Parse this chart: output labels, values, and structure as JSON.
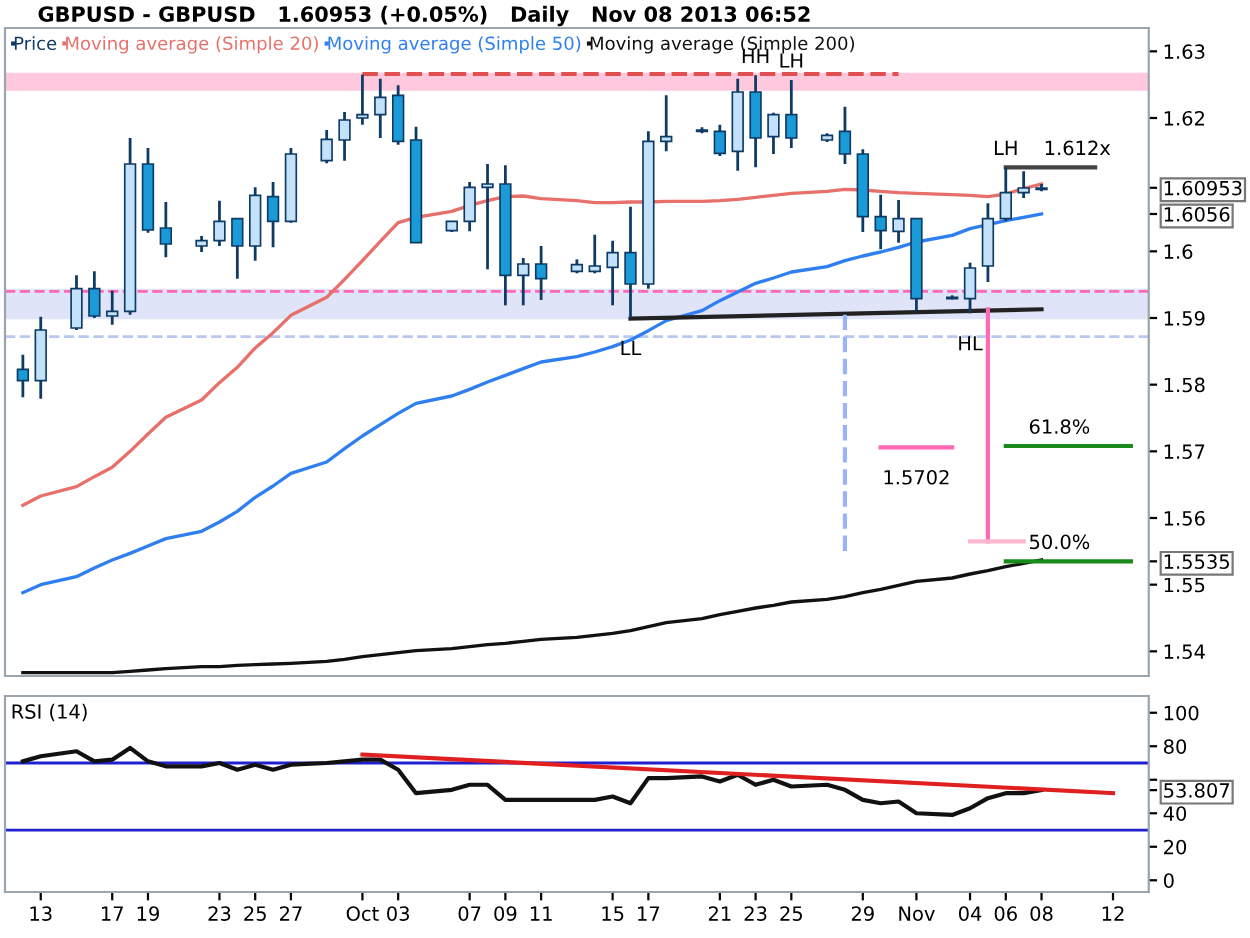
{
  "chart_data": [
    {
      "type": "candlestick",
      "title": "GBPUSD - GBPUSD   1.60953 (+0.05%)   Daily   Nov 08 2013 06:52",
      "x": [
        "2013-09-12",
        "2013-09-13",
        "2013-09-15",
        "2013-09-16",
        "2013-09-17",
        "2013-09-18",
        "2013-09-19",
        "2013-09-20",
        "2013-09-22",
        "2013-09-23",
        "2013-09-24",
        "2013-09-25",
        "2013-09-26",
        "2013-09-27",
        "2013-09-29",
        "2013-09-30",
        "2013-10-01",
        "2013-10-02",
        "2013-10-03",
        "2013-10-04",
        "2013-10-06",
        "2013-10-07",
        "2013-10-08",
        "2013-10-09",
        "2013-10-10",
        "2013-10-11",
        "2013-10-13",
        "2013-10-14",
        "2013-10-15",
        "2013-10-16",
        "2013-10-17",
        "2013-10-18",
        "2013-10-20",
        "2013-10-21",
        "2013-10-22",
        "2013-10-23",
        "2013-10-24",
        "2013-10-25",
        "2013-10-27",
        "2013-10-28",
        "2013-10-29",
        "2013-10-30",
        "2013-10-31",
        "2013-11-01",
        "2013-11-03",
        "2013-11-04",
        "2013-11-05",
        "2013-11-06",
        "2013-11-07",
        "2013-11-08"
      ],
      "series": [
        {
          "name": "Price",
          "color": "#0d3b66",
          "ohlc": [
            [
              1.5823,
              1.5845,
              1.5781,
              1.5806
            ],
            [
              1.5806,
              1.5902,
              1.5779,
              1.5882
            ],
            [
              1.5885,
              1.5964,
              1.5882,
              1.5944
            ],
            [
              1.5944,
              1.597,
              1.59,
              1.5903
            ],
            [
              1.5903,
              1.5941,
              1.589,
              1.591
            ],
            [
              1.591,
              1.617,
              1.5905,
              1.6131
            ],
            [
              1.6131,
              1.6155,
              1.6028,
              1.6032
            ],
            [
              1.6035,
              1.6074,
              1.5991,
              1.6011
            ],
            [
              1.6008,
              1.6023,
              1.5999,
              1.6016
            ],
            [
              1.6016,
              1.6076,
              1.6008,
              1.6045
            ],
            [
              1.6049,
              1.6049,
              1.5959,
              1.6008
            ],
            [
              1.6008,
              1.6096,
              1.5986,
              1.6084
            ],
            [
              1.6082,
              1.6104,
              1.6006,
              1.6045
            ],
            [
              1.6045,
              1.6155,
              1.6043,
              1.6146
            ],
            [
              1.6136,
              1.6182,
              1.6132,
              1.6168
            ],
            [
              1.6167,
              1.6209,
              1.6136,
              1.6197
            ],
            [
              1.62,
              1.6265,
              1.619,
              1.6205
            ],
            [
              1.6205,
              1.6259,
              1.617,
              1.6231
            ],
            [
              1.6234,
              1.6249,
              1.616,
              1.6165
            ],
            [
              1.6167,
              1.6187,
              1.6013,
              1.6013
            ],
            [
              1.6031,
              1.6045,
              1.6029,
              1.6045
            ],
            [
              1.6045,
              1.6104,
              1.603,
              1.6096
            ],
            [
              1.6096,
              1.6131,
              1.5973,
              1.6101
            ],
            [
              1.6101,
              1.6129,
              1.5919,
              1.5964
            ],
            [
              1.5964,
              1.599,
              1.5919,
              1.5981
            ],
            [
              1.5981,
              1.6008,
              1.5927,
              1.5959
            ],
            [
              1.597,
              1.5988,
              1.5967,
              1.598
            ],
            [
              1.597,
              1.6025,
              1.5967,
              1.5978
            ],
            [
              1.5976,
              1.6016,
              1.5919,
              1.5998
            ],
            [
              1.5998,
              1.6067,
              1.59,
              1.5951
            ],
            [
              1.5951,
              1.618,
              1.5944,
              1.6165
            ],
            [
              1.6165,
              1.6234,
              1.615,
              1.6172
            ],
            [
              1.618,
              1.6186,
              1.6177,
              1.6182
            ],
            [
              1.618,
              1.619,
              1.6143,
              1.6147
            ],
            [
              1.615,
              1.6259,
              1.6121,
              1.6239
            ],
            [
              1.6239,
              1.6264,
              1.6126,
              1.617
            ],
            [
              1.6172,
              1.6208,
              1.6146,
              1.6205
            ],
            [
              1.6205,
              1.6257,
              1.6155,
              1.617
            ],
            [
              1.6167,
              1.6177,
              1.6164,
              1.6174
            ],
            [
              1.618,
              1.6217,
              1.6131,
              1.6146
            ],
            [
              1.6146,
              1.6153,
              1.6029,
              1.6052
            ],
            [
              1.6052,
              1.6085,
              1.6003,
              1.6031
            ],
            [
              1.603,
              1.6077,
              1.6013,
              1.6049
            ],
            [
              1.6049,
              1.605,
              1.5911,
              1.5929
            ],
            [
              1.5929,
              1.5934,
              1.5928,
              1.5931
            ],
            [
              1.5929,
              1.5983,
              1.5907,
              1.5975
            ],
            [
              1.5978,
              1.6072,
              1.5954,
              1.6049
            ],
            [
              1.6049,
              1.6126,
              1.6045,
              1.6088
            ],
            [
              1.6088,
              1.612,
              1.608,
              1.6095
            ],
            [
              1.6093,
              1.6101,
              1.609,
              1.6095
            ]
          ],
          "colors": [
            "#1a9bd7",
            "#c3e1f8",
            "#c3e1f8",
            "#1a9bd7",
            "#c3e1f8",
            "#c3e1f8",
            "#1a9bd7",
            "#1a9bd7",
            "#c3e1f8",
            "#c3e1f8",
            "#1a9bd7",
            "#c3e1f8",
            "#1a9bd7",
            "#c3e1f8",
            "#c3e1f8",
            "#c3e1f8",
            "#c3e1f8",
            "#c3e1f8",
            "#1a9bd7",
            "#1a9bd7",
            "#c3e1f8",
            "#c3e1f8",
            "#c3e1f8",
            "#1a9bd7",
            "#c3e1f8",
            "#1a9bd7",
            "#c3e1f8",
            "#c3e1f8",
            "#c3e1f8",
            "#1a9bd7",
            "#c3e1f8",
            "#c3e1f8",
            "#c3e1f8",
            "#1a9bd7",
            "#c3e1f8",
            "#1a9bd7",
            "#c3e1f8",
            "#1a9bd7",
            "#c3e1f8",
            "#1a9bd7",
            "#1a9bd7",
            "#1a9bd7",
            "#c3e1f8",
            "#1a9bd7",
            "#c3e1f8",
            "#c3e1f8",
            "#c3e1f8",
            "#c3e1f8",
            "#c3e1f8",
            "#c3e1f8"
          ]
        },
        {
          "name": "Moving average (Simple 20)",
          "type": "line",
          "color": "#e8706a",
          "values": [
            1.5619,
            1.5633,
            1.5647,
            1.5662,
            1.5676,
            1.57,
            1.5726,
            1.5751,
            1.5777,
            1.5803,
            1.5826,
            1.5855,
            1.5878,
            1.5904,
            1.5931,
            1.5958,
            1.5986,
            1.6015,
            1.6043,
            1.6051,
            1.606,
            1.6069,
            1.6076,
            1.6082,
            1.6083,
            1.6079,
            1.6076,
            1.6073,
            1.6073,
            1.6074,
            1.6074,
            1.6075,
            1.6075,
            1.6076,
            1.6078,
            1.6081,
            1.6084,
            1.6087,
            1.609,
            1.6093,
            1.6092,
            1.609,
            1.6088,
            1.6087,
            1.6085,
            1.6084,
            1.6082,
            1.6086,
            1.6094,
            1.6101
          ]
        },
        {
          "name": "Moving average (Simple 50)",
          "type": "line",
          "color": "#2f7ff0",
          "values": [
            1.5488,
            1.55,
            1.5512,
            1.5525,
            1.5537,
            1.5547,
            1.5558,
            1.5569,
            1.558,
            1.5594,
            1.561,
            1.5631,
            1.5648,
            1.5667,
            1.5684,
            1.5704,
            1.5723,
            1.574,
            1.5757,
            1.5772,
            1.5783,
            1.5793,
            1.5804,
            1.5814,
            1.5824,
            1.5834,
            1.5842,
            1.5849,
            1.5857,
            1.5867,
            1.5881,
            1.5896,
            1.5911,
            1.5926,
            1.5939,
            1.5952,
            1.596,
            1.5969,
            1.5977,
            1.5986,
            1.5993,
            1.5999,
            1.6006,
            1.6014,
            1.6024,
            1.6034,
            1.604,
            1.6046,
            1.6051,
            1.6056
          ]
        },
        {
          "name": "Moving average (Simple 200)",
          "type": "line",
          "color": "#111111",
          "values": [
            1.5368,
            1.5368,
            1.5368,
            1.5368,
            1.5368,
            1.537,
            1.5372,
            1.5374,
            1.5377,
            1.5377,
            1.5379,
            1.538,
            1.5381,
            1.5382,
            1.5385,
            1.5388,
            1.5392,
            1.5395,
            1.5398,
            1.5401,
            1.5404,
            1.5407,
            1.541,
            1.5412,
            1.5415,
            1.5418,
            1.5421,
            1.5424,
            1.5427,
            1.5431,
            1.5437,
            1.5443,
            1.5449,
            1.5455,
            1.546,
            1.5465,
            1.5469,
            1.5474,
            1.5478,
            1.5482,
            1.5488,
            1.5493,
            1.5499,
            1.5505,
            1.551,
            1.5516,
            1.5521,
            1.5527,
            1.5532,
            1.5537
          ]
        },
        {
          "type": "line",
          "x": [
            "2013-10-01",
            "2013-10-31"
          ],
          "values": [
            1.6266,
            1.6266
          ],
          "color": "#e05050",
          "line_style": "dashed"
        },
        {
          "type": "line",
          "x": [
            "2013-10-16",
            "2013-11-08"
          ],
          "values": [
            1.5899,
            1.5913
          ],
          "color": "#222222"
        },
        {
          "type": "line",
          "x": [
            "2013-11-06",
            "2013-11-11"
          ],
          "values": [
            1.6126,
            1.6126
          ],
          "color": "#444444"
        },
        {
          "type": "line",
          "x": [
            "2013-11-05",
            "2013-11-05"
          ],
          "values": [
            1.5913,
            1.5565
          ],
          "color": "#ff69b4"
        },
        {
          "type": "line",
          "x": [
            "2013-11-04",
            "2013-11-07"
          ],
          "values": [
            1.5565,
            1.5565
          ],
          "color": "#ffb6d0"
        },
        {
          "type": "line",
          "x": [
            "2013-10-28",
            "2013-10-28"
          ],
          "values": [
            1.5905,
            1.555
          ],
          "color": "#99b3ff",
          "line_style": "dashed"
        },
        {
          "type": "line",
          "x": [
            "2013-10-30",
            "2013-11-03"
          ],
          "values": [
            1.5706,
            1.5706
          ],
          "color": "#ff69b4"
        },
        {
          "type": "line",
          "x": [
            "2013-11-06",
            "2013-11-13"
          ],
          "values": [
            1.5708,
            1.5708
          ],
          "color": "#1a8a1a"
        },
        {
          "type": "line",
          "x": [
            "2013-11-06",
            "2013-11-13"
          ],
          "values": [
            1.5535,
            1.5535
          ],
          "color": "#1a8a1a"
        }
      ],
      "bands": [
        {
          "axis": "y",
          "from": 1.6241,
          "to": 1.6268,
          "color": "#ffc8dc"
        },
        {
          "axis": "y",
          "from": 1.5898,
          "to": 1.5944,
          "color": "#dfe4f9"
        }
      ],
      "ref_lines": [
        {
          "axis": "y",
          "value": 1.594,
          "color": "#ff69b4",
          "line_style": "dashed"
        },
        {
          "axis": "y",
          "value": 1.5872,
          "color": "#b8c8f0",
          "line_style": "dashed"
        }
      ],
      "annotations": [
        {
          "text": "HH",
          "x": "2013-10-23",
          "y": 1.6264
        },
        {
          "text": "LH",
          "x": "2013-10-25",
          "y": 1.6257
        },
        {
          "text": "LL",
          "x": "2013-10-16",
          "y": 1.59
        },
        {
          "text": "HL",
          "x": "2013-11-04",
          "y": 1.5907
        },
        {
          "text": "LH",
          "x": "2013-11-06",
          "y": 1.6126
        },
        {
          "text": "1.612x",
          "x": "2013-11-10",
          "y": 1.6126
        },
        {
          "text": "1.5702",
          "x": "2013-11-01",
          "y": 1.5706
        },
        {
          "text": "61.8%",
          "x": "2013-11-09",
          "y": 1.5708
        },
        {
          "text": "50.0%",
          "x": "2013-11-09",
          "y": 1.5535
        }
      ],
      "xlim": [
        "2013-09-11",
        "2013-11-14"
      ],
      "ylim": [
        1.5363,
        1.6335
      ],
      "yticks": [
        1.54,
        1.55,
        1.56,
        1.57,
        1.58,
        1.59,
        {
          "value": 1.6,
          "label": "1.6"
        },
        1.62,
        1.63,
        {
          "value": 1.5535,
          "label": "1.5535"
        },
        {
          "value": 1.60953,
          "label": "1.60953"
        },
        {
          "value": 1.6056,
          "label": "1.6056"
        }
      ],
      "tick_labels": "y",
      "legend": "top left"
    },
    {
      "type": "line",
      "title": "RSI (14)",
      "x": [
        "2013-09-12",
        "2013-09-13",
        "2013-09-15",
        "2013-09-16",
        "2013-09-17",
        "2013-09-18",
        "2013-09-19",
        "2013-09-20",
        "2013-09-22",
        "2013-09-23",
        "2013-09-24",
        "2013-09-25",
        "2013-09-26",
        "2013-09-27",
        "2013-09-29",
        "2013-09-30",
        "2013-10-01",
        "2013-10-02",
        "2013-10-03",
        "2013-10-04",
        "2013-10-06",
        "2013-10-07",
        "2013-10-08",
        "2013-10-09",
        "2013-10-10",
        "2013-10-11",
        "2013-10-13",
        "2013-10-14",
        "2013-10-15",
        "2013-10-16",
        "2013-10-17",
        "2013-10-18",
        "2013-10-20",
        "2013-10-21",
        "2013-10-22",
        "2013-10-23",
        "2013-10-24",
        "2013-10-25",
        "2013-10-27",
        "2013-10-28",
        "2013-10-29",
        "2013-10-30",
        "2013-10-31",
        "2013-11-01",
        "2013-11-03",
        "2013-11-04",
        "2013-11-05",
        "2013-11-06",
        "2013-11-07",
        "2013-11-08"
      ],
      "series": [
        {
          "color": "#111111",
          "values": [
            71,
            74,
            77,
            71,
            72,
            79,
            71,
            68,
            68,
            70,
            66,
            69,
            66,
            69,
            70,
            71,
            72,
            72,
            66,
            52,
            54,
            57,
            57,
            48,
            48,
            48,
            48,
            48,
            50,
            46,
            61,
            61,
            62,
            59,
            63,
            57,
            60,
            56,
            57,
            54,
            48,
            46,
            47,
            40,
            39,
            43,
            49,
            52,
            52,
            53.807
          ]
        },
        {
          "type": "line",
          "x": [
            "2013-10-01",
            "2013-11-12"
          ],
          "values": [
            75,
            52
          ],
          "color": "#e02020"
        }
      ],
      "ref_lines": [
        {
          "axis": "y",
          "value": 70,
          "color": "#2020d0"
        },
        {
          "axis": "y",
          "value": 30,
          "color": "#2020d0"
        }
      ],
      "xlim": [
        "2013-09-11",
        "2013-11-14"
      ],
      "ylim": [
        -7,
        110
      ],
      "xticks": [
        {
          "value": "2013-09-13",
          "label": "13"
        },
        {
          "value": "2013-09-17",
          "label": "17"
        },
        {
          "value": "2013-09-19",
          "label": "19"
        },
        {
          "value": "2013-09-23",
          "label": "23"
        },
        {
          "value": "2013-09-25",
          "label": "25"
        },
        {
          "value": "2013-09-27",
          "label": "27"
        },
        {
          "value": "2013-10-01",
          "label": "Oct"
        },
        {
          "value": "2013-10-03",
          "label": "03"
        },
        {
          "value": "2013-10-07",
          "label": "07"
        },
        {
          "value": "2013-10-09",
          "label": "09"
        },
        {
          "value": "2013-10-11",
          "label": "11"
        },
        {
          "value": "2013-10-15",
          "label": "15"
        },
        {
          "value": "2013-10-17",
          "label": "17"
        },
        {
          "value": "2013-10-21",
          "label": "21"
        },
        {
          "value": "2013-10-23",
          "label": "23"
        },
        {
          "value": "2013-10-25",
          "label": "25"
        },
        {
          "value": "2013-10-29",
          "label": "29"
        },
        {
          "value": "2013-11-01",
          "label": "Nov"
        },
        {
          "value": "2013-11-04",
          "label": "04"
        },
        {
          "value": "2013-11-06",
          "label": "06"
        },
        {
          "value": "2013-11-08",
          "label": "08"
        },
        {
          "value": "2013-11-12",
          "label": "12"
        }
      ],
      "yticks": [
        0,
        20,
        40,
        {
          "value": 60,
          "label": null
        },
        80,
        100,
        {
          "value": 53.807,
          "label": "53.807"
        }
      ]
    }
  ]
}
